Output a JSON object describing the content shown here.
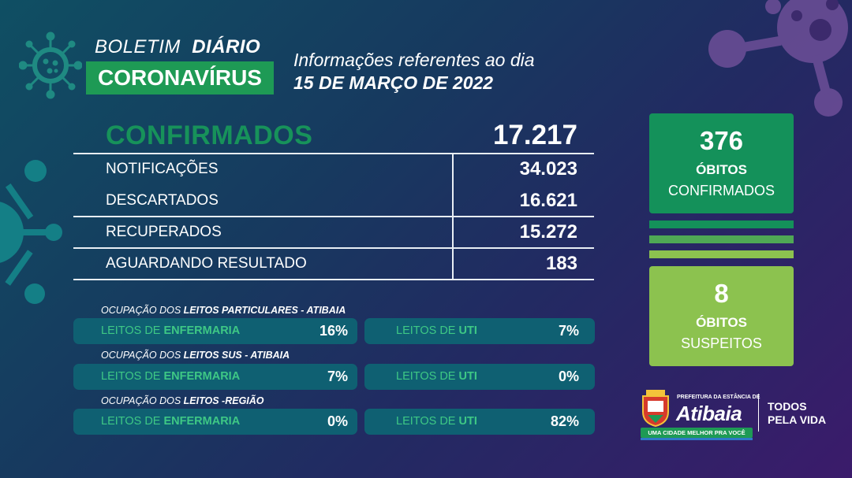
{
  "header": {
    "boletim": "BOLETIM",
    "diario": "DIÁRIO",
    "coronavirus": "CORONAVÍRUS",
    "info_line": "Informações referentes ao dia",
    "date": "15 DE MARÇO DE 2022"
  },
  "summary": {
    "confirmados_label": "CONFIRMADOS",
    "confirmados_value": "17.217",
    "rows": [
      {
        "label": "NOTIFICAÇÕES",
        "value": "34.023"
      },
      {
        "label": "DESCARTADOS",
        "value": "16.621"
      },
      {
        "label": "RECUPERADOS",
        "value": "15.272"
      },
      {
        "label": "AGUARDANDO RESULTADO",
        "value": "183"
      }
    ]
  },
  "occupancy": [
    {
      "title_prefix": "OCUPAÇÃO DOS ",
      "title_bold": "LEITOS PARTICULARES - ATIBAIA",
      "enf_prefix": "LEITOS DE ",
      "enf_bold": "ENFERMARIA",
      "enf_value": "16%",
      "uti_prefix": "LEITOS DE ",
      "uti_bold": "UTI",
      "uti_value": "7%"
    },
    {
      "title_prefix": "OCUPAÇÃO DOS ",
      "title_bold": "LEITOS SUS - ATIBAIA",
      "enf_prefix": "LEITOS DE ",
      "enf_bold": "ENFERMARIA",
      "enf_value": "7%",
      "uti_prefix": "LEITOS DE ",
      "uti_bold": "UTI",
      "uti_value": "0%"
    },
    {
      "title_prefix": "OCUPAÇÃO DOS ",
      "title_bold": "LEITOS -REGIÃO",
      "enf_prefix": "LEITOS DE ",
      "enf_bold": "ENFERMARIA",
      "enf_value": "0%",
      "uti_prefix": "LEITOS DE ",
      "uti_bold": "UTI",
      "uti_value": "82%"
    }
  ],
  "deaths": {
    "confirmed_value": "376",
    "confirmed_line1": "ÓBITOS",
    "confirmed_line2": "CONFIRMADOS",
    "suspected_value": "8",
    "suspected_line1": "ÓBITOS",
    "suspected_line2": "SUSPEITOS"
  },
  "footer": {
    "prefeitura": "PREFEITURA DA ESTÂNCIA DE",
    "city": "Atibaia",
    "slogan": "UMA CIDADE MELHOR PRA VOCÊ",
    "todos_line1": "TODOS",
    "todos_line2": "PELA VIDA"
  },
  "colors": {
    "green": "#14915a",
    "lime": "#8cc24f",
    "accent_text": "#3ec885",
    "pill": "#0f6072"
  },
  "icons": [
    "virus-icon",
    "coat-of-arms-icon"
  ]
}
